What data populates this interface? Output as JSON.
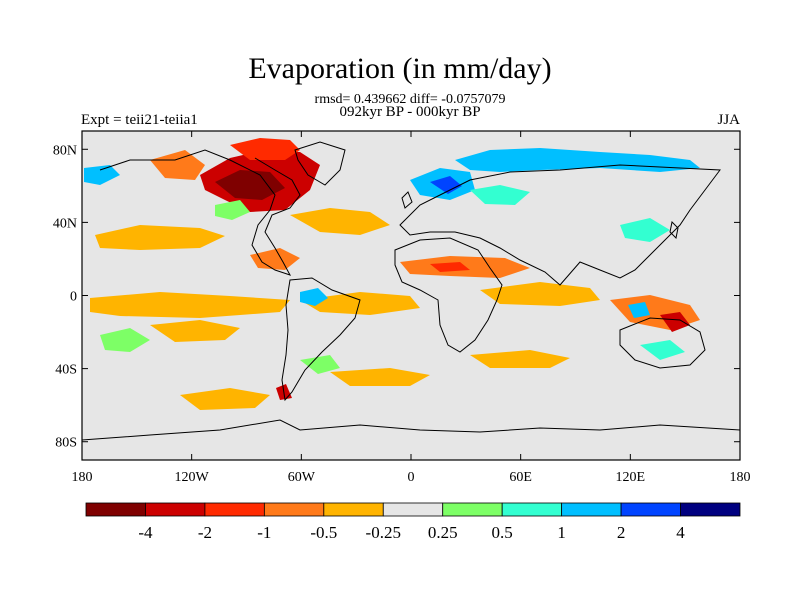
{
  "title": "Evaporation (in mm/day)",
  "stats_line": "rmsd= 0.439662 diff= -0.0757079",
  "period_line": "092kyr BP - 000kyr BP",
  "experiment_label": "Expt = teii21-teiia1",
  "season_label": "JJA",
  "map": {
    "projection": "cylindrical equidistant",
    "lon_range": [
      -180,
      180
    ],
    "lat_range": [
      -90,
      90
    ],
    "x_ticks": [
      {
        "value": -180,
        "label": "180"
      },
      {
        "value": -120,
        "label": "120W"
      },
      {
        "value": -60,
        "label": "60W"
      },
      {
        "value": 0,
        "label": "0"
      },
      {
        "value": 60,
        "label": "60E"
      },
      {
        "value": 120,
        "label": "120E"
      },
      {
        "value": 180,
        "label": "180"
      }
    ],
    "y_ticks": [
      {
        "value": 80,
        "label": "80N"
      },
      {
        "value": 40,
        "label": "40N"
      },
      {
        "value": 0,
        "label": "0"
      },
      {
        "value": -40,
        "label": "40S"
      },
      {
        "value": -80,
        "label": "80S"
      }
    ],
    "background_color": "#e6e6e6",
    "coastline_color": "#000000"
  },
  "colorbar": {
    "colors": [
      "#7f0000",
      "#cc0000",
      "#ff2a00",
      "#ff7a1a",
      "#ffb400",
      "#e6e6e6",
      "#7dff66",
      "#33ffd1",
      "#00bfff",
      "#0044ff",
      "#000080"
    ],
    "labels": [
      "-4",
      "-2",
      "-1",
      "-0.5",
      "-0.25",
      "0.25",
      "0.5",
      "1",
      "2",
      "4"
    ]
  }
}
